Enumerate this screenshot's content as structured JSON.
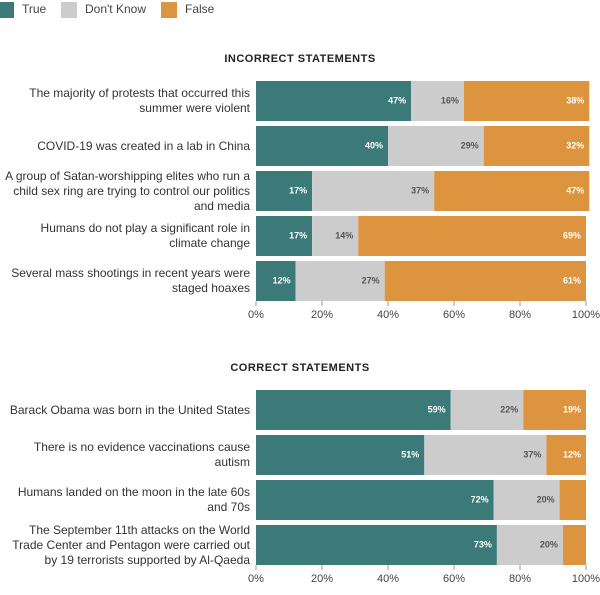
{
  "chart_data": {
    "type": "bar",
    "orientation": "horizontal",
    "stacked": true,
    "series": [
      {
        "name": "True",
        "color": "#3b7a78"
      },
      {
        "name": "Don't Know",
        "color": "#cccccc"
      },
      {
        "name": "False",
        "color": "#dd943f"
      }
    ],
    "xlim": [
      0,
      100
    ],
    "xticks": [
      {
        "value": 0,
        "label": "0%"
      },
      {
        "value": 20,
        "label": "20%"
      },
      {
        "value": 40,
        "label": "40%"
      },
      {
        "value": 60,
        "label": "60%"
      },
      {
        "value": 80,
        "label": "80%"
      },
      {
        "value": 100,
        "label": "100%"
      }
    ],
    "panels": [
      {
        "title": "INCORRECT STATEMENTS",
        "categories": [
          "The majority of protests that occurred this summer were violent",
          "COVID-19 was created in a lab in China",
          "A group of Satan-worshipping elites who run a child sex ring are trying to control our politics and media",
          "Humans do not play a significant role in climate change",
          "Several mass shootings in recent years were staged hoaxes"
        ],
        "series": [
          {
            "values": [
              47,
              40,
              17,
              17,
              12
            ],
            "value_labels": [
              "47%",
              "40%",
              "17%",
              "17%",
              "12%"
            ]
          },
          {
            "values": [
              16,
              29,
              37,
              14,
              27
            ],
            "value_labels": [
              "16%",
              "29%",
              "37%",
              "14%",
              "27%"
            ]
          },
          {
            "values": [
              38,
              32,
              47,
              69,
              61
            ],
            "value_labels": [
              "38%",
              "32%",
              "47%",
              "69%",
              "61%"
            ]
          }
        ]
      },
      {
        "title": "CORRECT STATEMENTS",
        "categories": [
          "Barack Obama was born in the United States",
          "There is no evidence vaccinations cause autism",
          "Humans landed on the moon in the late 60s and 70s",
          "The September 11th attacks on the World Trade Center and Pentagon were carried out by 19 terrorists supported by Al-Qaeda"
        ],
        "series": [
          {
            "values": [
              59,
              51,
              72,
              73
            ],
            "value_labels": [
              "59%",
              "51%",
              "72%",
              "73%"
            ]
          },
          {
            "values": [
              22,
              37,
              20,
              20
            ],
            "value_labels": [
              "22%",
              "37%",
              "20%",
              "20%"
            ]
          },
          {
            "values": [
              19,
              12,
              8,
              7
            ],
            "value_labels": [
              "19%",
              "12%",
              null,
              null
            ]
          }
        ]
      }
    ]
  }
}
